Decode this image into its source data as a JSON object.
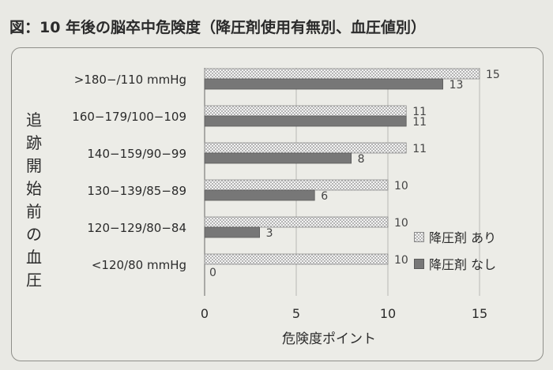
{
  "title": "図：10 年後の脳卒中危険度（降圧剤使用有無別、血圧値別）",
  "chart_data": {
    "type": "bar",
    "orientation": "horizontal",
    "title": "図：10 年後の脳卒中危険度（降圧剤使用有無別、血圧値別）",
    "xlabel": "危険度ポイント",
    "ylabel": "追跡開始前の血圧",
    "categories": [
      ">180−/110 mmHg",
      "160−179/100−109",
      "140−159/90−99",
      "130−139/85−89",
      "120−129/80−84",
      "<120/80 mmHg"
    ],
    "series": [
      {
        "name": "降圧剤 あり",
        "values": [
          15,
          11,
          11,
          10,
          10,
          10
        ]
      },
      {
        "name": "降圧剤 なし",
        "values": [
          13,
          11,
          8,
          6,
          3,
          0
        ]
      }
    ],
    "xlim": [
      0,
      15
    ],
    "xticks": [
      0,
      5,
      10,
      15
    ],
    "grid": "vertical",
    "legend_position": "right",
    "colors": {
      "with": "#b4b4b4",
      "without": "#777777"
    }
  }
}
